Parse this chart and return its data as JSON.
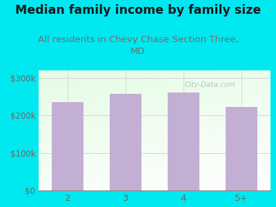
{
  "title": "Median family income by family size",
  "subtitle": "All residents in Chevy Chase Section Three,\nMD",
  "categories": [
    "2",
    "3",
    "4",
    "5+"
  ],
  "values": [
    235000,
    258000,
    262000,
    222000
  ],
  "bar_color": "#c4afd4",
  "bg_color": "#00e8f0",
  "title_color": "#1a1a1a",
  "subtitle_color": "#7a6a6a",
  "tick_label_color": "#7a6060",
  "ytick_labels": [
    "$0",
    "$100k",
    "$200k",
    "$300k"
  ],
  "ytick_values": [
    0,
    100000,
    200000,
    300000
  ],
  "ylim": [
    0,
    320000
  ],
  "title_fontsize": 12.5,
  "subtitle_fontsize": 9.5,
  "watermark": "City-Data.com"
}
